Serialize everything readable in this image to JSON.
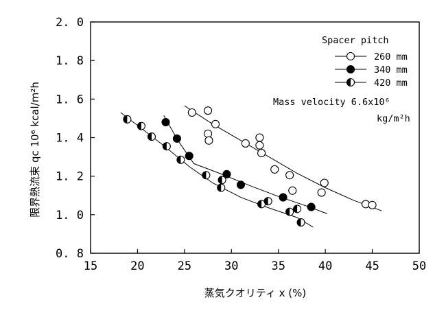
{
  "chart_data": {
    "type": "scatter",
    "xlabel": "蒸気クオリティ x (%)",
    "ylabel": "限界熱流束 qc 10⁶ kcal/m²h",
    "xlim": [
      15,
      50
    ],
    "ylim": [
      0.8,
      2.0
    ],
    "xticks": [
      "15",
      "20",
      "25",
      "30",
      "35",
      "40",
      "45",
      "50"
    ],
    "yticks": [
      "0. 8",
      "1. 0",
      "1. 2",
      "1. 4",
      "1. 6",
      "1. 8",
      "2. 0"
    ],
    "grid": false,
    "legend": {
      "title": "Spacer pitch",
      "placement": "top-right",
      "entries": [
        "260 mm",
        "340 mm",
        "420 mm"
      ]
    },
    "annotation": {
      "line1": "Mass velocity 6.6x10⁶",
      "line2": "kg/m²h"
    },
    "series": [
      {
        "name": "260 mm",
        "marker": "open-circle",
        "points": [
          [
            25.8,
            1.53
          ],
          [
            27.5,
            1.54
          ],
          [
            28.3,
            1.47
          ],
          [
            27.5,
            1.42
          ],
          [
            27.6,
            1.385
          ],
          [
            31.5,
            1.37
          ],
          [
            33.0,
            1.4
          ],
          [
            33.0,
            1.36
          ],
          [
            33.2,
            1.32
          ],
          [
            34.6,
            1.235
          ],
          [
            36.2,
            1.205
          ],
          [
            36.5,
            1.125
          ],
          [
            39.9,
            1.165
          ],
          [
            39.6,
            1.115
          ],
          [
            44.3,
            1.055
          ],
          [
            45.0,
            1.05
          ]
        ],
        "trend": [
          [
            25.0,
            1.565
          ],
          [
            28.0,
            1.47
          ],
          [
            31.0,
            1.385
          ],
          [
            34.0,
            1.3
          ],
          [
            37.0,
            1.215
          ],
          [
            40.0,
            1.14
          ],
          [
            43.0,
            1.075
          ],
          [
            46.0,
            1.02
          ]
        ]
      },
      {
        "name": "340 mm",
        "marker": "filled-circle",
        "points": [
          [
            23.0,
            1.48
          ],
          [
            24.2,
            1.395
          ],
          [
            25.5,
            1.305
          ],
          [
            29.5,
            1.21
          ],
          [
            31.0,
            1.155
          ],
          [
            35.5,
            1.09
          ],
          [
            38.5,
            1.04
          ]
        ],
        "trend": [
          [
            22.8,
            1.515
          ],
          [
            24.3,
            1.385
          ],
          [
            26.0,
            1.265
          ],
          [
            29.0,
            1.21
          ],
          [
            32.0,
            1.15
          ],
          [
            35.0,
            1.095
          ],
          [
            38.0,
            1.045
          ],
          [
            40.2,
            1.005
          ]
        ]
      },
      {
        "name": "420 mm",
        "marker": "half-filled-circle",
        "points": [
          [
            18.9,
            1.495
          ],
          [
            20.4,
            1.46
          ],
          [
            21.5,
            1.405
          ],
          [
            23.1,
            1.355
          ],
          [
            24.6,
            1.285
          ],
          [
            27.3,
            1.205
          ],
          [
            29.0,
            1.18
          ],
          [
            28.9,
            1.14
          ],
          [
            33.2,
            1.055
          ],
          [
            33.9,
            1.07
          ],
          [
            36.2,
            1.015
          ],
          [
            37.0,
            1.03
          ],
          [
            37.4,
            0.96
          ]
        ],
        "trend": [
          [
            18.2,
            1.53
          ],
          [
            20.5,
            1.445
          ],
          [
            23.0,
            1.35
          ],
          [
            25.5,
            1.25
          ],
          [
            28.0,
            1.165
          ],
          [
            31.0,
            1.09
          ],
          [
            34.0,
            1.035
          ],
          [
            37.0,
            0.985
          ],
          [
            38.7,
            0.935
          ]
        ]
      }
    ]
  }
}
